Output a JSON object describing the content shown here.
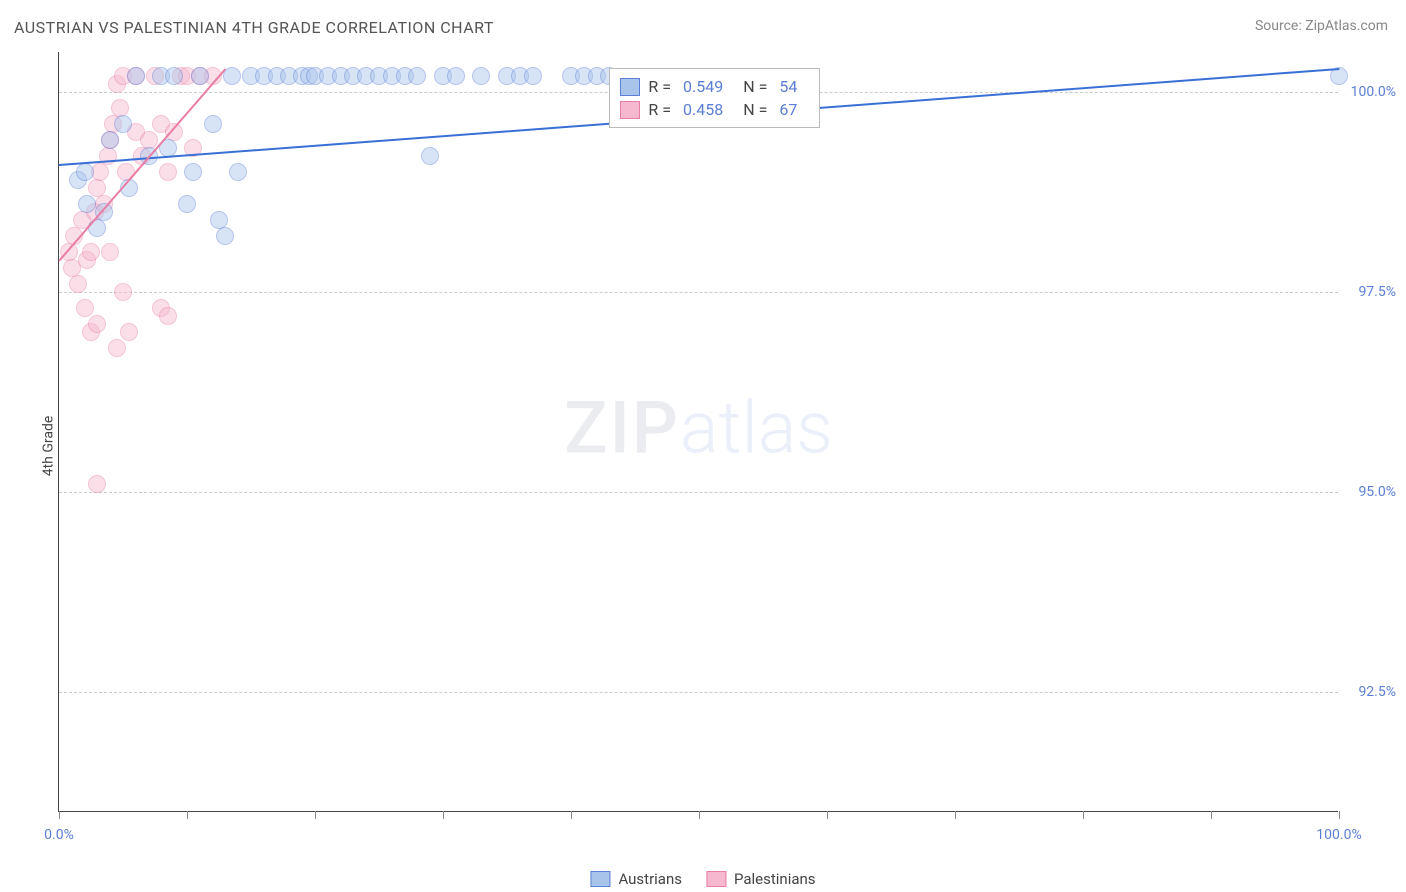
{
  "title": "AUSTRIAN VS PALESTINIAN 4TH GRADE CORRELATION CHART",
  "source_label": "Source:",
  "source_name": "ZipAtlas.com",
  "ylabel": "4th Grade",
  "watermark_a": "ZIP",
  "watermark_b": "atlas",
  "chart": {
    "type": "scatter",
    "xlim": [
      0,
      100
    ],
    "ylim": [
      91,
      100.5
    ],
    "yticks": [
      92.5,
      95.0,
      97.5,
      100.0
    ],
    "ytick_labels": [
      "92.5%",
      "95.0%",
      "97.5%",
      "100.0%"
    ],
    "xticks": [
      0,
      10,
      20,
      30,
      40,
      50,
      60,
      70,
      80,
      90,
      100
    ],
    "xtick_labels_shown": {
      "0": "0.0%",
      "100": "100.0%"
    },
    "grid_color": "#cccccc",
    "background_color": "#ffffff",
    "point_radius": 9,
    "point_opacity": 0.45,
    "series": [
      {
        "name": "Austrians",
        "fill": "#a8c4ea",
        "stroke": "#5b7fd6",
        "line_color": "#3a6fd6",
        "r_value": "0.549",
        "n_value": "54",
        "trend": {
          "x1": 0,
          "y1": 99.1,
          "x2": 100,
          "y2": 100.3
        },
        "points": [
          [
            1.5,
            98.9
          ],
          [
            2.0,
            99.0
          ],
          [
            2.2,
            98.6
          ],
          [
            3.0,
            98.3
          ],
          [
            3.5,
            98.5
          ],
          [
            4.0,
            99.4
          ],
          [
            5.0,
            99.6
          ],
          [
            5.5,
            98.8
          ],
          [
            6.0,
            100.2
          ],
          [
            7.0,
            99.2
          ],
          [
            8.0,
            100.2
          ],
          [
            8.5,
            99.3
          ],
          [
            9.0,
            100.2
          ],
          [
            10.0,
            98.6
          ],
          [
            10.5,
            99.0
          ],
          [
            11.0,
            100.2
          ],
          [
            12.0,
            99.6
          ],
          [
            12.5,
            98.4
          ],
          [
            13.0,
            98.2
          ],
          [
            13.5,
            100.2
          ],
          [
            14.0,
            99.0
          ],
          [
            15.0,
            100.2
          ],
          [
            16.0,
            100.2
          ],
          [
            17.0,
            100.2
          ],
          [
            18.0,
            100.2
          ],
          [
            19.0,
            100.2
          ],
          [
            19.5,
            100.2
          ],
          [
            20.0,
            100.2
          ],
          [
            21.0,
            100.2
          ],
          [
            22.0,
            100.2
          ],
          [
            23.0,
            100.2
          ],
          [
            24.0,
            100.2
          ],
          [
            25.0,
            100.2
          ],
          [
            26.0,
            100.2
          ],
          [
            27.0,
            100.2
          ],
          [
            28.0,
            100.2
          ],
          [
            29.0,
            99.2
          ],
          [
            30.0,
            100.2
          ],
          [
            31.0,
            100.2
          ],
          [
            33.0,
            100.2
          ],
          [
            35.0,
            100.2
          ],
          [
            36.0,
            100.2
          ],
          [
            37.0,
            100.2
          ],
          [
            40.0,
            100.2
          ],
          [
            41.0,
            100.2
          ],
          [
            42.0,
            100.2
          ],
          [
            43.0,
            100.2
          ],
          [
            100.0,
            100.2
          ]
        ]
      },
      {
        "name": "Palestinians",
        "fill": "#f5b8ce",
        "stroke": "#e87da5",
        "line_color": "#e87da5",
        "r_value": "0.458",
        "n_value": "67",
        "trend": {
          "x1": 0,
          "y1": 97.9,
          "x2": 13,
          "y2": 100.3
        },
        "points": [
          [
            0.8,
            98.0
          ],
          [
            1.0,
            97.8
          ],
          [
            1.2,
            98.2
          ],
          [
            1.5,
            97.6
          ],
          [
            1.8,
            98.4
          ],
          [
            2.0,
            97.3
          ],
          [
            2.2,
            97.9
          ],
          [
            2.5,
            98.0
          ],
          [
            2.5,
            97.0
          ],
          [
            2.8,
            98.5
          ],
          [
            3.0,
            98.8
          ],
          [
            3.0,
            97.1
          ],
          [
            3.2,
            99.0
          ],
          [
            3.5,
            98.6
          ],
          [
            3.8,
            99.2
          ],
          [
            4.0,
            99.4
          ],
          [
            4.0,
            98.0
          ],
          [
            4.2,
            99.6
          ],
          [
            4.5,
            100.1
          ],
          [
            4.8,
            99.8
          ],
          [
            5.0,
            100.2
          ],
          [
            5.0,
            97.5
          ],
          [
            5.2,
            99.0
          ],
          [
            5.5,
            97.0
          ],
          [
            6.0,
            100.2
          ],
          [
            6.0,
            99.5
          ],
          [
            6.5,
            99.2
          ],
          [
            7.0,
            99.4
          ],
          [
            7.5,
            100.2
          ],
          [
            8.0,
            99.6
          ],
          [
            8.0,
            97.3
          ],
          [
            8.5,
            97.2
          ],
          [
            8.5,
            99.0
          ],
          [
            9.0,
            99.5
          ],
          [
            9.5,
            100.2
          ],
          [
            10.0,
            100.2
          ],
          [
            10.5,
            99.3
          ],
          [
            11.0,
            100.2
          ],
          [
            12.0,
            100.2
          ],
          [
            3.0,
            95.1
          ],
          [
            4.5,
            96.8
          ]
        ]
      }
    ]
  },
  "legend": {
    "items": [
      {
        "label": "Austrians",
        "fill": "#a8c4ea",
        "stroke": "#5b7fd6"
      },
      {
        "label": "Palestinians",
        "fill": "#f5b8ce",
        "stroke": "#e87da5"
      }
    ]
  },
  "stats_box": {
    "label_r": "R =",
    "label_n": "N ="
  }
}
